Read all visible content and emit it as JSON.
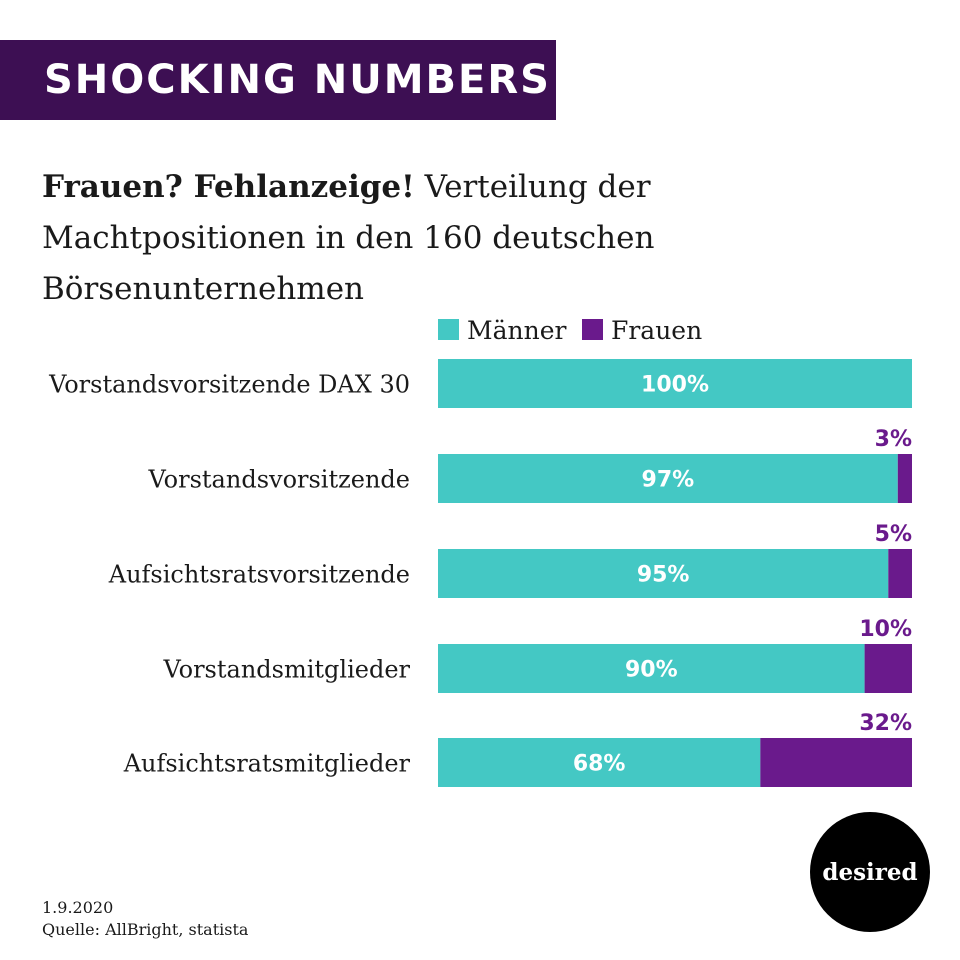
{
  "banner": {
    "text": "SHOCKING NUMBERS",
    "bg_color": "#3d0f53"
  },
  "headline": {
    "lead": "Frauen? Fehlanzeige!",
    "rest": "Verteilung der Machtpositionen in den 160 deutschen Börsenunternehmen"
  },
  "footer": {
    "date": "1.9.2020",
    "source": "Quelle: AllBright, statista"
  },
  "logo": {
    "text": "desired"
  },
  "colors": {
    "maenner": "#44c8c4",
    "frauen": "#6a1a8c"
  },
  "chart_data": {
    "type": "bar",
    "orientation": "horizontal",
    "stacked": true,
    "legend_position": "top",
    "categories": [
      "Vorstandsvorsitzende DAX 30",
      "Vorstandsvorsitzende",
      "Aufsichtsratsvorsitzende",
      "Vorstandsmitglieder",
      "Aufsichtsratsmitglieder"
    ],
    "series": [
      {
        "name": "Männer",
        "values": [
          100,
          97,
          95,
          90,
          68
        ],
        "labels": [
          "100%",
          "97%",
          "95%",
          "90%",
          "68%"
        ]
      },
      {
        "name": "Frauen",
        "values": [
          0,
          3,
          5,
          10,
          32
        ],
        "labels": [
          "",
          "3%",
          "5%",
          "10%",
          "32%"
        ]
      }
    ],
    "xlim": [
      0,
      100
    ],
    "grid": false
  }
}
